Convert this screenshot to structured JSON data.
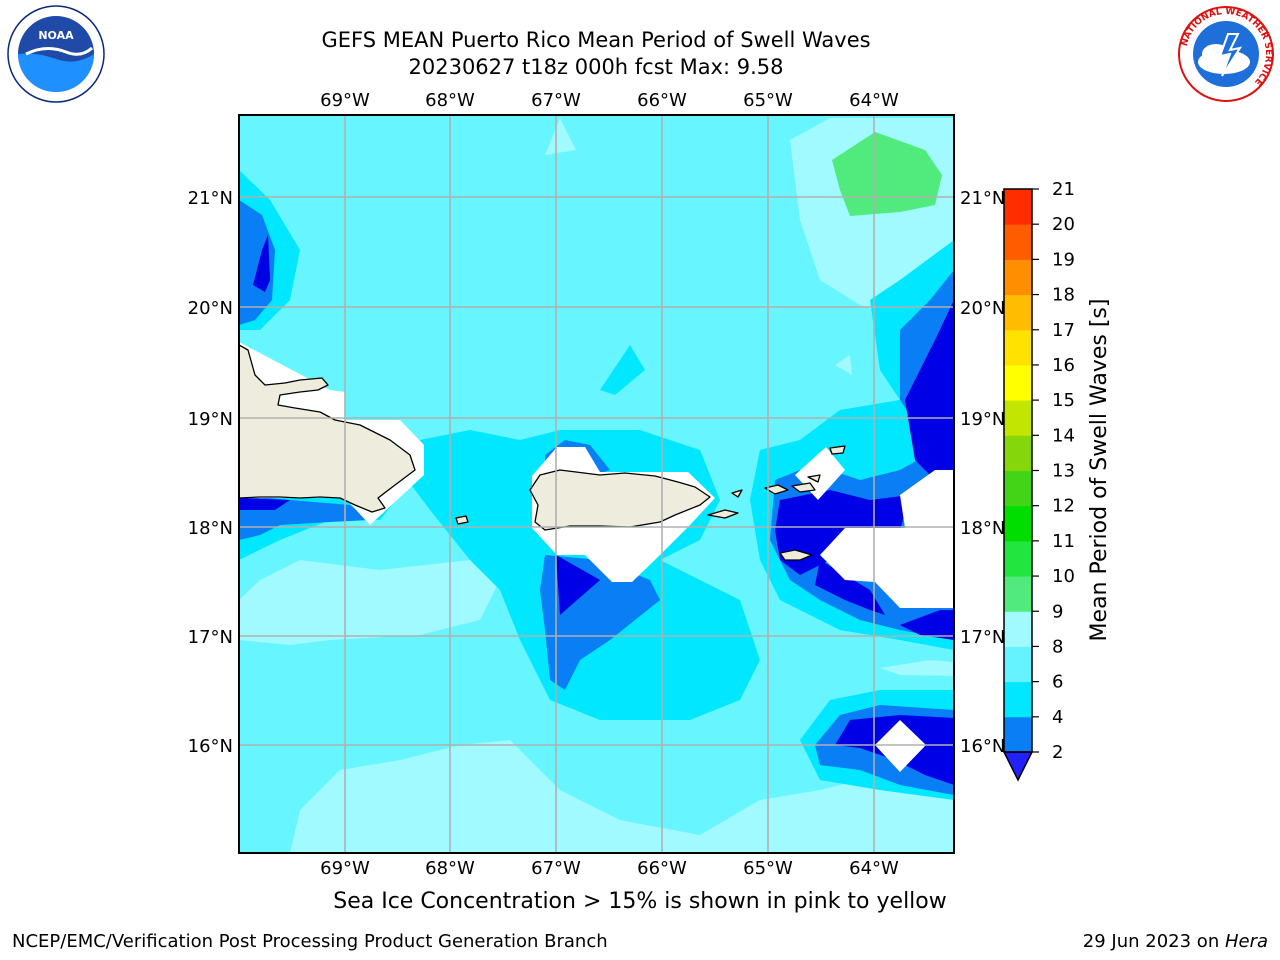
{
  "header": {
    "title_line1": "GEFS MEAN Puerto Rico Mean Period of Swell Waves",
    "title_line2": "20230627 t18z 000h fcst   Max: 9.58"
  },
  "logos": {
    "left": "noaa-logo",
    "left_text": "NOAA",
    "right": "nws-logo",
    "right_text": "NATIONAL WEATHER SERVICE"
  },
  "map": {
    "lon_labels": [
      "69°W",
      "68°W",
      "67°W",
      "66°W",
      "65°W",
      "64°W"
    ],
    "lat_labels": [
      "21°N",
      "20°N",
      "19°N",
      "18°N",
      "17°N",
      "16°N"
    ],
    "ocean_base": "#67f5ff",
    "land_color": "#eeecdc"
  },
  "colorbar": {
    "label": "Mean Period of Swell Waves [s]",
    "ticks": [
      "2",
      "4",
      "6",
      "8",
      "9",
      "10",
      "11",
      "12",
      "13",
      "14",
      "15",
      "16",
      "17",
      "18",
      "19",
      "20",
      "21"
    ],
    "colors": [
      "#2222ff",
      "#0a7ef5",
      "#00e7ff",
      "#65f4ff",
      "#a1faff",
      "#50eb7c",
      "#22e53f",
      "#00de00",
      "#44d417",
      "#86d60c",
      "#c2e501",
      "#ffff00",
      "#ffe200",
      "#ffbc00",
      "#ff8e00",
      "#ff5c00",
      "#ff2d00",
      "#ff0000"
    ]
  },
  "footer": {
    "note": "Sea Ice Concentration > 15% is shown in pink to yellow",
    "left": "NCEP/EMC/Verification Post Processing Product Generation Branch",
    "date": "29 Jun 2023 on ",
    "machine": "Hera"
  }
}
